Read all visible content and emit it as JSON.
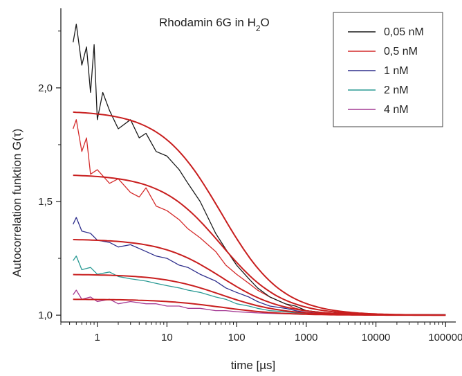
{
  "chart_data": {
    "type": "line",
    "annotation": {
      "main": "Rhodamin 6G in H",
      "sub": "2",
      "tail": "O"
    },
    "xlabel": "time [µs]",
    "ylabel": "Autocorrelation funktion G(τ)",
    "x_scale": "log",
    "xlim": [
      0.3,
      140000
    ],
    "ylim": [
      0.97,
      2.35
    ],
    "x_ticks": [
      1,
      10,
      100,
      1000,
      10000,
      100000
    ],
    "x_tick_labels": [
      "1",
      "10",
      "100",
      "1000",
      "10000",
      "100000"
    ],
    "y_ticks": [
      1.0,
      1.5,
      2.0
    ],
    "y_tick_labels": [
      "1,0",
      "1,5",
      "2,0"
    ],
    "legend_position": "top-right",
    "grid": false,
    "series": [
      {
        "name": "0,05 nM",
        "color": "#1a1a1a",
        "x": [
          0.45,
          0.5,
          0.6,
          0.7,
          0.8,
          0.9,
          1,
          1.2,
          1.5,
          2,
          3,
          4,
          5,
          7,
          10,
          15,
          20,
          30,
          50,
          70,
          100,
          150,
          200,
          300,
          500,
          700,
          1000,
          2000,
          5000,
          10000,
          50000,
          100000
        ],
        "y": [
          2.2,
          2.28,
          2.1,
          2.18,
          1.98,
          2.19,
          1.86,
          1.98,
          1.9,
          1.82,
          1.86,
          1.78,
          1.8,
          1.72,
          1.7,
          1.64,
          1.58,
          1.5,
          1.36,
          1.29,
          1.22,
          1.16,
          1.12,
          1.08,
          1.05,
          1.04,
          1.02,
          1.01,
          1.005,
          1.003,
          1.002,
          1.002
        ]
      },
      {
        "name": "0,5 nM",
        "color": "#d42a2a",
        "x": [
          0.45,
          0.5,
          0.6,
          0.7,
          0.8,
          1,
          1.5,
          2,
          3,
          4,
          5,
          7,
          10,
          15,
          20,
          30,
          50,
          70,
          100,
          150,
          200,
          300,
          500,
          700,
          1000,
          2000,
          5000,
          10000,
          100000
        ],
        "y": [
          1.82,
          1.86,
          1.72,
          1.78,
          1.62,
          1.64,
          1.58,
          1.6,
          1.54,
          1.52,
          1.56,
          1.48,
          1.46,
          1.42,
          1.38,
          1.34,
          1.28,
          1.22,
          1.18,
          1.14,
          1.11,
          1.08,
          1.05,
          1.03,
          1.02,
          1.01,
          1.005,
          1.003,
          1.002
        ]
      },
      {
        "name": "1 nM",
        "color": "#2e2e8c",
        "x": [
          0.45,
          0.5,
          0.6,
          0.8,
          1,
          1.5,
          2,
          3,
          5,
          7,
          10,
          15,
          20,
          30,
          50,
          70,
          100,
          150,
          200,
          300,
          500,
          700,
          1000,
          2000,
          5000,
          10000,
          100000
        ],
        "y": [
          1.4,
          1.43,
          1.37,
          1.36,
          1.33,
          1.32,
          1.3,
          1.31,
          1.28,
          1.26,
          1.25,
          1.22,
          1.21,
          1.18,
          1.15,
          1.12,
          1.1,
          1.08,
          1.06,
          1.04,
          1.03,
          1.02,
          1.012,
          1.006,
          1.004,
          1.003,
          1.002
        ]
      },
      {
        "name": "2 nM",
        "color": "#2a9a94",
        "x": [
          0.45,
          0.5,
          0.6,
          0.8,
          1,
          1.5,
          2,
          3,
          5,
          7,
          10,
          15,
          20,
          30,
          50,
          70,
          100,
          150,
          200,
          300,
          500,
          700,
          1000,
          2000,
          5000,
          10000,
          100000
        ],
        "y": [
          1.24,
          1.26,
          1.2,
          1.21,
          1.18,
          1.19,
          1.17,
          1.16,
          1.15,
          1.14,
          1.13,
          1.12,
          1.11,
          1.1,
          1.08,
          1.07,
          1.05,
          1.04,
          1.03,
          1.02,
          1.015,
          1.01,
          1.007,
          1.004,
          1.003,
          1.002,
          1.002
        ]
      },
      {
        "name": "4 nM",
        "color": "#a43a94",
        "x": [
          0.45,
          0.5,
          0.6,
          0.8,
          1,
          1.5,
          2,
          3,
          5,
          7,
          10,
          15,
          20,
          30,
          50,
          70,
          100,
          200,
          500,
          1000,
          5000,
          10000,
          100000
        ],
        "y": [
          1.09,
          1.11,
          1.07,
          1.08,
          1.06,
          1.07,
          1.05,
          1.06,
          1.05,
          1.05,
          1.04,
          1.04,
          1.03,
          1.03,
          1.02,
          1.02,
          1.015,
          1.01,
          1.006,
          1.004,
          1.002,
          1.002,
          1.002
        ]
      }
    ],
    "fits": {
      "color": "#c81e1e",
      "G_inf": 1.0,
      "curves": [
        {
          "G0": 1.9,
          "tau_d": 60
        },
        {
          "G0": 1.62,
          "tau_d": 60
        },
        {
          "G0": 1.335,
          "tau_d": 60
        },
        {
          "G0": 1.18,
          "tau_d": 60
        },
        {
          "G0": 1.07,
          "tau_d": 60
        }
      ]
    }
  }
}
